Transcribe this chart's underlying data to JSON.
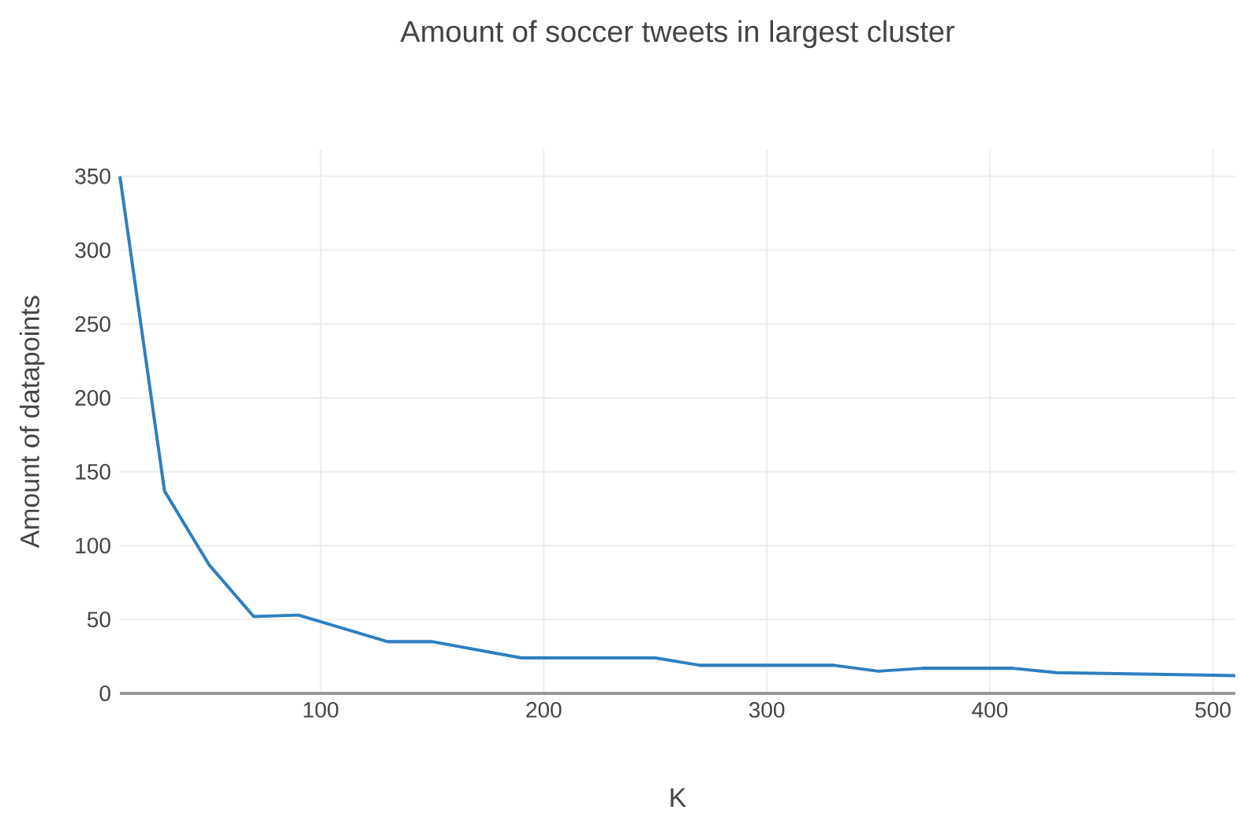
{
  "chart_data": {
    "type": "line",
    "title": "Amount of soccer tweets in largest cluster",
    "xlabel": "K",
    "ylabel": "Amount of datapoints",
    "x": [
      10,
      30,
      50,
      70,
      90,
      130,
      150,
      190,
      250,
      270,
      330,
      350,
      370,
      410,
      430,
      510
    ],
    "series": [
      {
        "color": "#2e7fbf",
        "values": [
          350,
          137,
          87,
          52,
          53,
          35,
          35,
          24,
          24,
          19,
          19,
          15,
          17,
          17,
          14,
          12
        ]
      }
    ],
    "xlim": [
      10,
      510
    ],
    "ylim": [
      0,
      368
    ],
    "xticks": [
      100,
      200,
      300,
      400,
      500
    ],
    "yticks": [
      0,
      50,
      100,
      150,
      200,
      250,
      300,
      350
    ],
    "grid": true,
    "marker": "none",
    "line_style": "solid"
  }
}
